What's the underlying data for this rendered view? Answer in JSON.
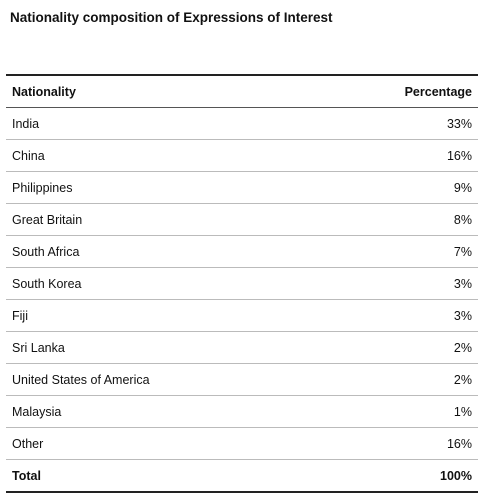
{
  "title": "Nationality composition of Expressions of Interest",
  "table": {
    "header": [
      "Nationality",
      "Percentage"
    ],
    "rows": [
      [
        "India",
        "33%"
      ],
      [
        "China",
        "16%"
      ],
      [
        "Philippines",
        "9%"
      ],
      [
        "Great Britain",
        "8%"
      ],
      [
        "South Africa",
        "7%"
      ],
      [
        "South Korea",
        "3%"
      ],
      [
        "Fiji",
        "3%"
      ],
      [
        "Sri Lanka",
        "2%"
      ],
      [
        "United States of America",
        "2%"
      ],
      [
        "Malaysia",
        "1%"
      ],
      [
        "Other",
        "16%"
      ]
    ],
    "total": [
      "Total",
      "100%"
    ]
  }
}
